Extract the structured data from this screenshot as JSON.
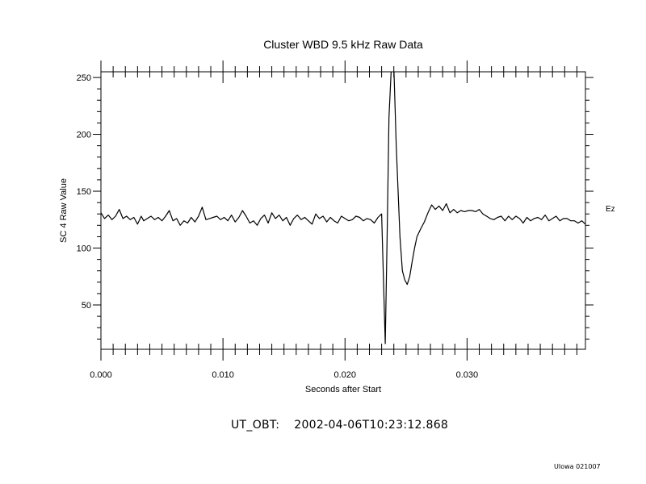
{
  "footer": {
    "label": "UT_OBT:",
    "timestamp": "2002-04-06T10:23:12.868",
    "credit": "UIowa 021007"
  },
  "chart_data": {
    "type": "line",
    "title": "Cluster WBD 9.5 kHz Raw Data",
    "xlabel": "Seconds after Start",
    "ylabel": "SC 4 Raw Value",
    "right_label": "Ez",
    "xlim": [
      0.0,
      0.0397
    ],
    "ylim": [
      11,
      255
    ],
    "x_ticks": [
      0.0,
      0.01,
      0.02,
      0.03
    ],
    "x_tick_labels": [
      "0.000",
      "0.010",
      "0.020",
      "0.030"
    ],
    "y_ticks": [
      50,
      100,
      150,
      200,
      250
    ],
    "y_tick_labels": [
      "50",
      "100",
      "150",
      "200",
      "250"
    ],
    "grid": false,
    "series": [
      {
        "x": [
          0.0,
          0.0003,
          0.0006,
          0.0009,
          0.0012,
          0.0015,
          0.0018,
          0.0021,
          0.0024,
          0.0027,
          0.003,
          0.0033,
          0.0035,
          0.0038,
          0.0041,
          0.0044,
          0.0047,
          0.005,
          0.0053,
          0.0056,
          0.0059,
          0.0062,
          0.0065,
          0.0068,
          0.0071,
          0.0074,
          0.0077,
          0.008,
          0.0083,
          0.0086,
          0.0089,
          0.0092,
          0.0095,
          0.0098,
          0.0101,
          0.0104,
          0.0107,
          0.011,
          0.0113,
          0.0116,
          0.0119,
          0.0122,
          0.0125,
          0.0128,
          0.0131,
          0.0134,
          0.0137,
          0.014,
          0.0143,
          0.0146,
          0.0149,
          0.0152,
          0.0155,
          0.0158,
          0.0161,
          0.0164,
          0.0167,
          0.017,
          0.0173,
          0.0176,
          0.0179,
          0.0182,
          0.0185,
          0.0188,
          0.0191,
          0.0194,
          0.0197,
          0.02,
          0.0203,
          0.0206,
          0.0209,
          0.0212,
          0.0215,
          0.0218,
          0.0221,
          0.0224,
          0.0227,
          0.023,
          0.0233,
          0.02345,
          0.0236,
          0.0238,
          0.024,
          0.0242,
          0.0245,
          0.0247,
          0.0249,
          0.0251,
          0.0253,
          0.0255,
          0.0257,
          0.0259,
          0.0262,
          0.0265,
          0.0268,
          0.0271,
          0.0274,
          0.0277,
          0.028,
          0.0283,
          0.0286,
          0.0289,
          0.0292,
          0.0295,
          0.0298,
          0.0301,
          0.0304,
          0.0307,
          0.031,
          0.0313,
          0.0316,
          0.0319,
          0.0322,
          0.0325,
          0.0328,
          0.0331,
          0.0334,
          0.0337,
          0.034,
          0.0343,
          0.0346,
          0.0349,
          0.0352,
          0.0355,
          0.0358,
          0.0361,
          0.0364,
          0.0367,
          0.037,
          0.0373,
          0.0376,
          0.0379,
          0.0382,
          0.0385,
          0.0388,
          0.0391,
          0.0394,
          0.0397
        ],
        "y": [
          131,
          126,
          129,
          125,
          128,
          134,
          126,
          128,
          125,
          127,
          121,
          128,
          124,
          126,
          128,
          125,
          127,
          124,
          128,
          133,
          124,
          126,
          120,
          124,
          122,
          127,
          123,
          128,
          136,
          125,
          126,
          127,
          128,
          125,
          127,
          124,
          129,
          123,
          127,
          133,
          128,
          122,
          124,
          120,
          126,
          129,
          122,
          131,
          126,
          129,
          124,
          127,
          120,
          126,
          129,
          125,
          127,
          124,
          121,
          130,
          126,
          128,
          123,
          127,
          124,
          122,
          128,
          126,
          124,
          125,
          128,
          127,
          124,
          126,
          125,
          122,
          127,
          130,
          16,
          110,
          215,
          260,
          260,
          190,
          110,
          80,
          72,
          68,
          75,
          88,
          100,
          110,
          117,
          123,
          131,
          138,
          134,
          137,
          133,
          139,
          131,
          134,
          131,
          133,
          132,
          133,
          133,
          132,
          134,
          130,
          128,
          126,
          125,
          127,
          128,
          124,
          128,
          125,
          128,
          126,
          122,
          127,
          124,
          126,
          127,
          125,
          129,
          124,
          126,
          128,
          124,
          126,
          126,
          124,
          124,
          122,
          124,
          121
        ]
      }
    ]
  }
}
